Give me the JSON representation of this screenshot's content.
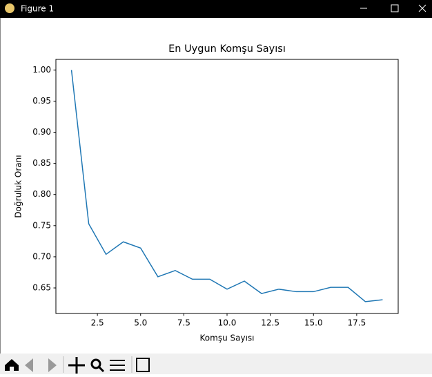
{
  "window": {
    "title": "Figure 1"
  },
  "chart_data": {
    "type": "line",
    "title": "En Uygun Komşu Sayısı",
    "x_label": "Komşu Sayısı",
    "y_label": "Doğruluk Oranı",
    "x": [
      1,
      2,
      3,
      4,
      5,
      6,
      7,
      8,
      9,
      10,
      11,
      12,
      13,
      14,
      15,
      16,
      17,
      18,
      19
    ],
    "series": [
      {
        "color": "#1f77b4",
        "values": [
          1.0,
          0.753,
          0.704,
          0.724,
          0.714,
          0.668,
          0.678,
          0.664,
          0.664,
          0.648,
          0.661,
          0.641,
          0.648,
          0.644,
          0.644,
          0.651,
          0.651,
          0.628,
          0.631
        ]
      }
    ],
    "xlim": [
      0.1,
      19.9
    ],
    "ylim": [
      0.609,
      1.017
    ],
    "xticks": [
      2.5,
      {
        "value": 5,
        "label": "5.0"
      },
      7.5,
      {
        "value": 10,
        "label": "10.0"
      },
      12.5,
      {
        "value": 15,
        "label": "15.0"
      },
      17.5
    ],
    "yticks": [
      {
        "value": 0.65,
        "label": "0.65"
      },
      {
        "value": 0.7,
        "label": "0.70"
      },
      {
        "value": 0.75,
        "label": "0.75"
      },
      {
        "value": 0.8,
        "label": "0.80"
      },
      {
        "value": 0.85,
        "label": "0.85"
      },
      {
        "value": 0.9,
        "label": "0.90"
      },
      {
        "value": 0.95,
        "label": "0.95"
      },
      {
        "value": 1.0,
        "label": "1.00"
      }
    ],
    "grid": false
  }
}
